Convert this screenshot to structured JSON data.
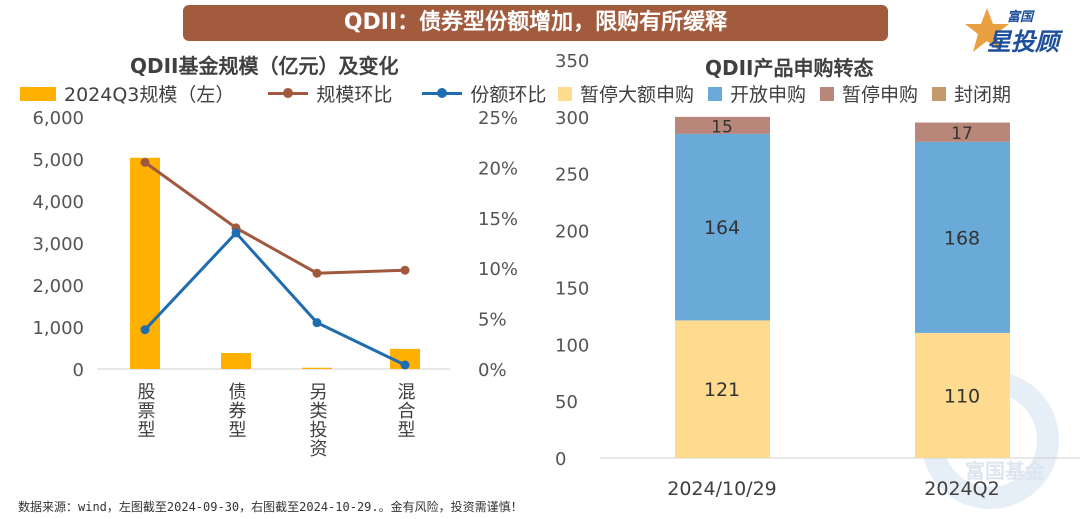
{
  "banner": {
    "title": "QDII：债券型份额增加，限购有所缓释"
  },
  "logo": {
    "top": "富国",
    "bottom": "星投顾"
  },
  "watermark": "富国基金",
  "footer": "数据来源：wind，左图截至2024-09-30，右图截至2024-10-29.。金有风险，投资需谨慎！",
  "colors": {
    "bar": "#ffb000",
    "scale": "#a0593f",
    "share": "#1f6cb0",
    "large_pause": "#ffdb8f",
    "open": "#6aaad9",
    "pause": "#b9877a",
    "closed": "#c49a6c",
    "banner": "#a35b3e"
  },
  "chart_data": [
    {
      "type": "bar+line",
      "title": "QDII基金规模（亿元）及变化",
      "categories": [
        "股票型",
        "债券型",
        "另类投资",
        "混合型"
      ],
      "series": [
        {
          "name": "2024Q3规模（左）",
          "kind": "bar",
          "axis": "left",
          "values": [
            5030,
            380,
            30,
            480
          ]
        },
        {
          "name": "规模环比",
          "kind": "line",
          "axis": "right",
          "values": [
            20.5,
            14.0,
            9.5,
            9.8
          ]
        },
        {
          "name": "份额环比",
          "kind": "line",
          "axis": "right",
          "values": [
            3.9,
            13.5,
            4.6,
            0.4
          ]
        }
      ],
      "ylim": [
        0,
        6000
      ],
      "yticks": [
        "0",
        "1,000",
        "2,000",
        "3,000",
        "4,000",
        "5,000",
        "6,000"
      ],
      "y2lim": [
        0,
        25
      ],
      "y2ticks": [
        "0%",
        "5%",
        "10%",
        "15%",
        "20%",
        "25%"
      ],
      "legend": "top",
      "grid": false
    },
    {
      "type": "stacked-bar",
      "title": "QDII产品申购转态",
      "categories": [
        "2024/10/29",
        "2024Q2"
      ],
      "series": [
        {
          "name": "暂停大额申购",
          "values": [
            121,
            110
          ]
        },
        {
          "name": "开放申购",
          "values": [
            164,
            168
          ]
        },
        {
          "name": "暂停申购",
          "values": [
            15,
            17
          ]
        },
        {
          "name": "封闭期",
          "values": [
            0,
            0
          ]
        }
      ],
      "ylim": [
        0,
        350
      ],
      "yticks": [
        "0",
        "50",
        "100",
        "150",
        "200",
        "250",
        "300",
        "350"
      ],
      "legend": "top",
      "grid": false
    }
  ]
}
